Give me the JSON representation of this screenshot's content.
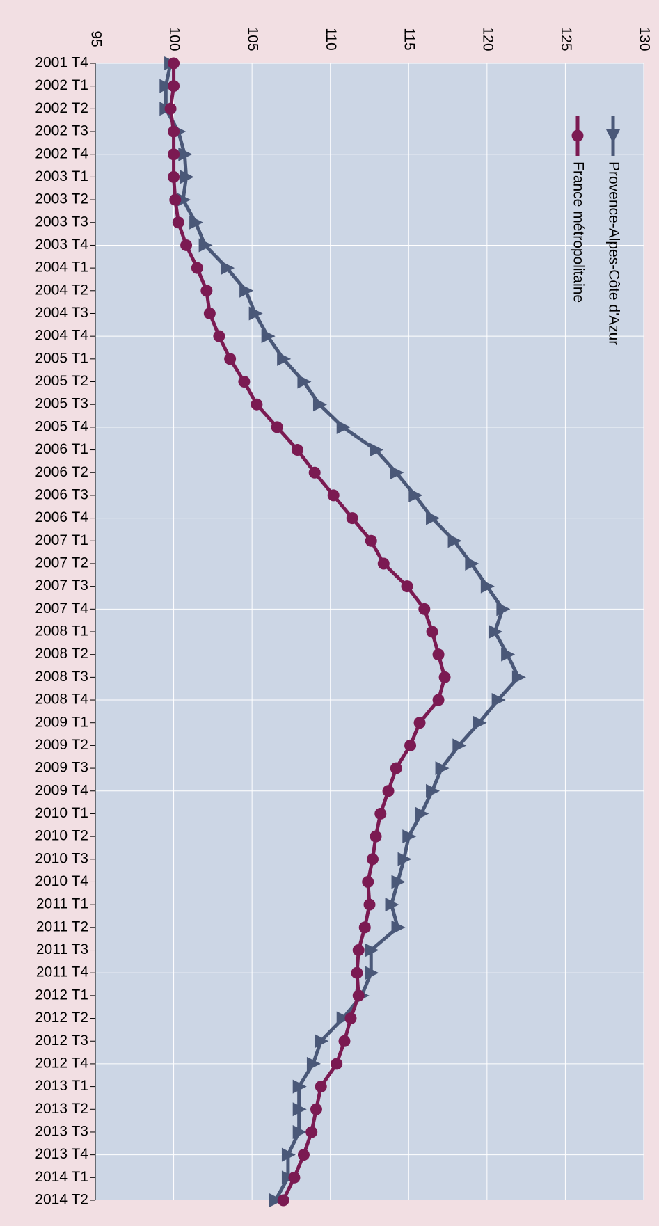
{
  "chart_data": {
    "type": "line",
    "orientation": "rotated",
    "categories": [
      "2001 T4",
      "2002 T1",
      "2002 T2",
      "2002 T3",
      "2002 T4",
      "2003 T1",
      "2003 T2",
      "2003 T3",
      "2003 T4",
      "2004 T1",
      "2004 T2",
      "2004 T3",
      "2004 T4",
      "2005 T1",
      "2005 T2",
      "2005 T3",
      "2005 T4",
      "2006 T1",
      "2006 T2",
      "2006 T3",
      "2006 T4",
      "2007 T1",
      "2007 T2",
      "2007 T3",
      "2007 T4",
      "2008 T1",
      "2008 T2",
      "2008 T3",
      "2008 T4",
      "2009 T1",
      "2009 T2",
      "2009 T3",
      "2009 T4",
      "2010 T1",
      "2010 T2",
      "2010 T3",
      "2010 T4",
      "2011 T1",
      "2011 T2",
      "2011 T3",
      "2011 T4",
      "2012 T1",
      "2012 T2",
      "2012 T3",
      "2012 T4",
      "2013 T1",
      "2013 T2",
      "2013 T3",
      "2013 T4",
      "2014 T1",
      "2014 T2"
    ],
    "series": [
      {
        "name": "Provence-Alpes-Côte d'Azur",
        "color": "#4a5878",
        "marker": "triangle",
        "values": [
          99.8,
          99.5,
          99.5,
          100.3,
          100.7,
          100.8,
          100.6,
          101.4,
          102.0,
          103.4,
          104.6,
          105.2,
          106.0,
          107.0,
          108.3,
          109.3,
          110.8,
          112.9,
          114.2,
          115.4,
          116.5,
          117.9,
          119.0,
          120.0,
          121.0,
          120.5,
          121.3,
          122.0,
          120.7,
          119.5,
          118.2,
          117.1,
          116.5,
          115.8,
          115.0,
          114.7,
          114.3,
          113.9,
          114.3,
          112.6,
          112.6,
          112.0,
          110.8,
          109.4,
          108.9,
          108.0,
          108.0,
          108.0,
          107.3,
          107.3,
          106.5
        ]
      },
      {
        "name": "France métropolitaine",
        "color": "#7b1a52",
        "marker": "circle",
        "values": [
          100,
          100,
          99.8,
          100.0,
          100,
          100.0,
          100.1,
          100.3,
          100.8,
          101.5,
          102.1,
          102.3,
          102.9,
          103.6,
          104.5,
          105.3,
          106.6,
          107.9,
          109.0,
          110.2,
          111.4,
          112.6,
          113.4,
          114.9,
          116.0,
          116.5,
          116.9,
          117.3,
          116.9,
          115.7,
          115.1,
          114.2,
          113.7,
          113.2,
          112.9,
          112.7,
          112.4,
          112.5,
          112.2,
          111.8,
          111.7,
          111.8,
          111.3,
          110.9,
          110.4,
          109.4,
          109.1,
          108.8,
          108.3,
          107.7,
          107.0
        ]
      }
    ],
    "ylim": [
      95,
      130
    ],
    "yticks": [
      95,
      100,
      105,
      110,
      115,
      120,
      125,
      130
    ],
    "grid": true
  }
}
